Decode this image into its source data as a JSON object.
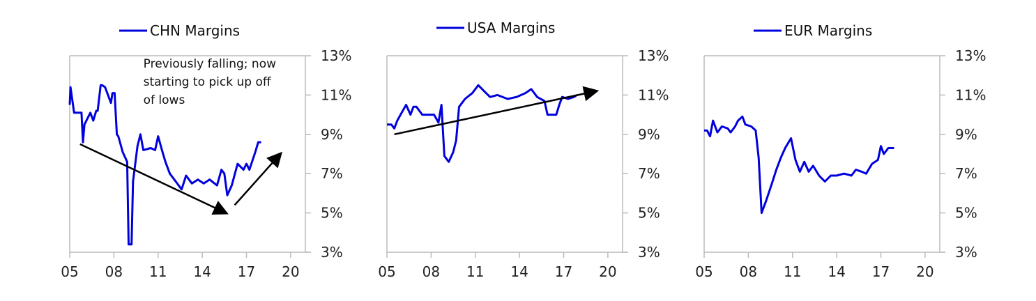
{
  "chart_data": [
    {
      "type": "line",
      "title": "CHN Margins",
      "legend": "CHN Margins",
      "legend_placement": "top",
      "xlim": [
        2005,
        2021
      ],
      "ylim": [
        3,
        13
      ],
      "x_ticks": [
        {
          "v": 2005,
          "label": "05"
        },
        {
          "v": 2008,
          "label": "08"
        },
        {
          "v": 2011,
          "label": "11"
        },
        {
          "v": 2014,
          "label": "14"
        },
        {
          "v": 2017,
          "label": "17"
        },
        {
          "v": 2020,
          "label": "20"
        }
      ],
      "y_ticks": [
        {
          "v": 13,
          "label": "13%"
        },
        {
          "v": 11,
          "label": "11%"
        },
        {
          "v": 9,
          "label": "9%"
        },
        {
          "v": 7,
          "label": "7%"
        },
        {
          "v": 5,
          "label": "5%"
        },
        {
          "v": 3,
          "label": "3%"
        }
      ],
      "y_axis_side": "right",
      "series": [
        {
          "name": "CHN Margins",
          "color": "#0000dd",
          "x": [
            2005.0,
            2005.05,
            2005.3,
            2005.8,
            2005.9,
            2006.0,
            2006.2,
            2006.4,
            2006.6,
            2006.8,
            2006.9,
            2007.1,
            2007.2,
            2007.4,
            2007.8,
            2007.9,
            2008.05,
            2008.2,
            2008.3,
            2008.6,
            2008.9,
            2009.0,
            2009.2,
            2009.3,
            2009.6,
            2009.8,
            2010.0,
            2010.5,
            2010.8,
            2011.0,
            2011.3,
            2011.5,
            2011.8,
            2012.2,
            2012.6,
            2012.9,
            2013.3,
            2013.7,
            2014.1,
            2014.5,
            2015.0,
            2015.3,
            2015.5,
            2015.7,
            2016.0,
            2016.4,
            2016.8,
            2017.0,
            2017.2,
            2017.6,
            2017.8,
            2018.0
          ],
          "y": [
            10.5,
            11.4,
            10.1,
            10.1,
            8.6,
            9.5,
            9.8,
            10.1,
            9.7,
            10.2,
            10.2,
            11.5,
            11.5,
            11.4,
            10.6,
            11.1,
            11.1,
            9.0,
            8.9,
            8.1,
            7.6,
            3.4,
            3.4,
            6.6,
            8.4,
            9.0,
            8.2,
            8.3,
            8.2,
            8.9,
            8.1,
            7.6,
            7.0,
            6.6,
            6.2,
            6.9,
            6.5,
            6.7,
            6.5,
            6.7,
            6.4,
            7.2,
            7.0,
            5.9,
            6.4,
            7.5,
            7.2,
            7.5,
            7.2,
            8.1,
            8.6,
            8.6
          ]
        }
      ],
      "annotations": [
        {
          "text_lines": [
            "Previously falling; now",
            "starting to pick up off",
            "of lows"
          ],
          "x": 2010.0,
          "y": 12.4
        },
        {
          "type": "arrow",
          "from": [
            2005.7,
            8.5
          ],
          "to": [
            2015.6,
            5.0
          ]
        },
        {
          "type": "arrow",
          "from": [
            2016.2,
            5.4
          ],
          "to": [
            2019.3,
            8.0
          ]
        }
      ]
    },
    {
      "type": "line",
      "title": "USA Margins",
      "legend": "USA Margins",
      "legend_placement": "top",
      "xlim": [
        2005,
        2021
      ],
      "ylim": [
        3,
        13
      ],
      "x_ticks": [
        {
          "v": 2005,
          "label": "05"
        },
        {
          "v": 2008,
          "label": "08"
        },
        {
          "v": 2011,
          "label": "11"
        },
        {
          "v": 2014,
          "label": "14"
        },
        {
          "v": 2017,
          "label": "17"
        },
        {
          "v": 2020,
          "label": "20"
        }
      ],
      "y_ticks": [
        {
          "v": 13,
          "label": "13%"
        },
        {
          "v": 11,
          "label": "11%"
        },
        {
          "v": 9,
          "label": "9%"
        },
        {
          "v": 7,
          "label": "7%"
        },
        {
          "v": 5,
          "label": "5%"
        },
        {
          "v": 3,
          "label": "3%"
        }
      ],
      "y_axis_side": "right",
      "series": [
        {
          "name": "USA Margins",
          "color": "#0000dd",
          "x": [
            2005.0,
            2005.3,
            2005.5,
            2005.7,
            2006.0,
            2006.3,
            2006.6,
            2006.8,
            2007.0,
            2007.4,
            2007.6,
            2008.2,
            2008.5,
            2008.7,
            2008.9,
            2009.2,
            2009.5,
            2009.7,
            2009.9,
            2010.3,
            2010.8,
            2011.2,
            2011.6,
            2012.0,
            2012.5,
            2013.2,
            2013.8,
            2014.4,
            2014.8,
            2015.2,
            2015.7,
            2015.9,
            2016.5,
            2016.7,
            2016.9,
            2017.3,
            2017.7,
            2017.9
          ],
          "y": [
            9.5,
            9.5,
            9.3,
            9.7,
            10.1,
            10.5,
            10.0,
            10.4,
            10.4,
            10.0,
            10.0,
            10.0,
            9.6,
            10.5,
            7.9,
            7.6,
            8.1,
            8.7,
            10.4,
            10.8,
            11.1,
            11.5,
            11.2,
            10.9,
            11.0,
            10.8,
            10.9,
            11.1,
            11.3,
            10.9,
            10.7,
            10.0,
            10.0,
            10.5,
            10.9,
            10.8,
            10.9,
            11.0
          ]
        }
      ],
      "annotations": [
        {
          "type": "arrow",
          "from": [
            2005.5,
            9.0
          ],
          "to": [
            2019.2,
            11.2
          ]
        }
      ]
    },
    {
      "type": "line",
      "title": "EUR Margins",
      "legend": "EUR Margins",
      "legend_placement": "top",
      "xlim": [
        2005,
        2021
      ],
      "ylim": [
        3,
        13
      ],
      "x_ticks": [
        {
          "v": 2005,
          "label": "05"
        },
        {
          "v": 2008,
          "label": "08"
        },
        {
          "v": 2011,
          "label": "11"
        },
        {
          "v": 2014,
          "label": "14"
        },
        {
          "v": 2017,
          "label": "17"
        },
        {
          "v": 2020,
          "label": "20"
        }
      ],
      "y_ticks": [
        {
          "v": 13,
          "label": "13%"
        },
        {
          "v": 11,
          "label": "11%"
        },
        {
          "v": 9,
          "label": "9%"
        },
        {
          "v": 7,
          "label": "7%"
        },
        {
          "v": 5,
          "label": "5%"
        },
        {
          "v": 3,
          "label": "3%"
        }
      ],
      "y_axis_side": "right",
      "series": [
        {
          "name": "EUR Margins",
          "color": "#0000dd",
          "x": [
            2005.0,
            2005.2,
            2005.4,
            2005.6,
            2005.9,
            2006.2,
            2006.6,
            2006.8,
            2007.1,
            2007.3,
            2007.6,
            2007.8,
            2008.2,
            2008.5,
            2008.7,
            2008.9,
            2009.2,
            2009.6,
            2009.9,
            2010.2,
            2010.5,
            2010.9,
            2011.2,
            2011.5,
            2011.8,
            2012.1,
            2012.4,
            2012.8,
            2013.2,
            2013.6,
            2014.0,
            2014.5,
            2015.0,
            2015.3,
            2015.7,
            2016.0,
            2016.4,
            2016.8,
            2017.0,
            2017.2,
            2017.5,
            2017.9
          ],
          "y": [
            9.2,
            9.2,
            8.9,
            9.7,
            9.1,
            9.4,
            9.3,
            9.1,
            9.4,
            9.7,
            9.9,
            9.5,
            9.4,
            9.2,
            7.8,
            5.0,
            5.6,
            6.5,
            7.2,
            7.8,
            8.3,
            8.8,
            7.7,
            7.1,
            7.6,
            7.1,
            7.4,
            6.9,
            6.6,
            6.9,
            6.9,
            7.0,
            6.9,
            7.2,
            7.1,
            7.0,
            7.5,
            7.7,
            8.4,
            8.0,
            8.3,
            8.3
          ]
        }
      ],
      "annotations": []
    }
  ]
}
